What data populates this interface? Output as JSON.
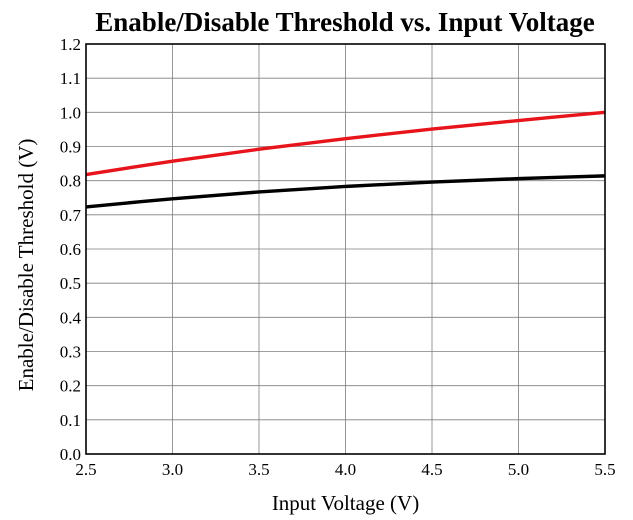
{
  "chart_data": {
    "type": "line",
    "title": "Enable/Disable Threshold vs. Input Voltage",
    "xlabel": "Input Voltage (V)",
    "ylabel": "Enable/Disable Threshold (V)",
    "xlim": [
      2.5,
      5.5
    ],
    "ylim": [
      0.0,
      1.2
    ],
    "x_ticks": [
      "2.5",
      "3.0",
      "3.5",
      "4.0",
      "4.5",
      "5.0",
      "5.5"
    ],
    "y_ticks": [
      "0.0",
      "0.1",
      "0.2",
      "0.3",
      "0.4",
      "0.5",
      "0.6",
      "0.7",
      "0.8",
      "0.9",
      "1.0",
      "1.1",
      "1.2"
    ],
    "grid": true,
    "legend": "none",
    "series": [
      {
        "color": "#e8141b",
        "x": [
          2.5,
          3.0,
          3.5,
          4.0,
          4.5,
          5.0,
          5.5
        ],
        "y": [
          0.818,
          0.857,
          0.892,
          0.923,
          0.951,
          0.976,
          1.0
        ]
      },
      {
        "color": "#000000",
        "x": [
          2.5,
          3.0,
          3.5,
          4.0,
          4.5,
          5.0,
          5.5
        ],
        "y": [
          0.723,
          0.747,
          0.767,
          0.783,
          0.796,
          0.806,
          0.814
        ]
      }
    ]
  }
}
